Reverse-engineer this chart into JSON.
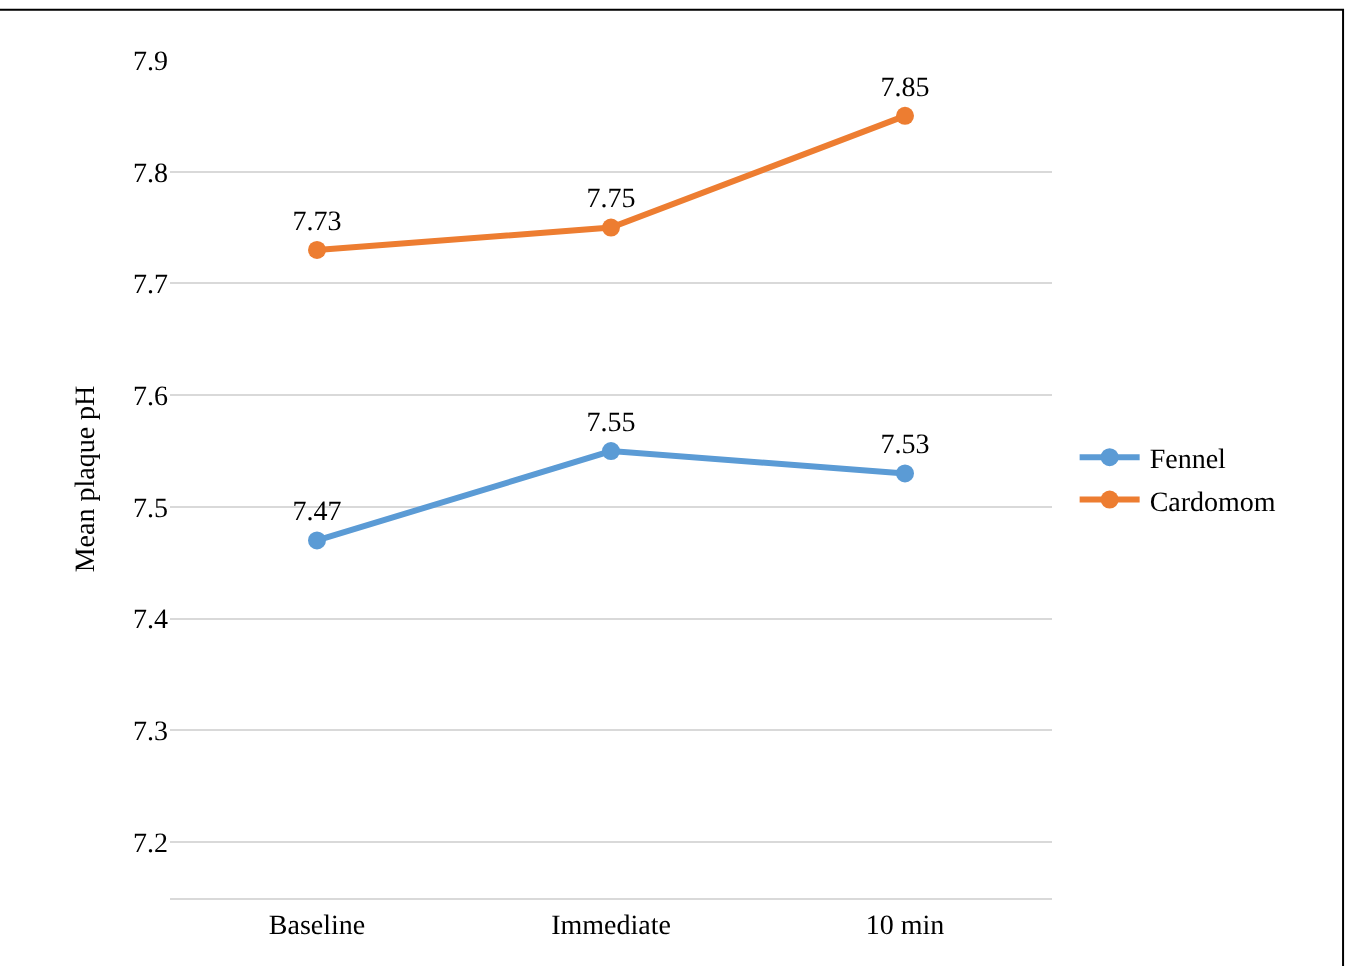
{
  "chart_data": {
    "type": "line",
    "ylabel": "Mean plaque pH",
    "categories": [
      "Baseline",
      "Immediate",
      "10 min"
    ],
    "series": [
      {
        "name": "Fennel",
        "color": "#5b9bd5",
        "values": [
          7.47,
          7.55,
          7.53
        ]
      },
      {
        "name": "Cardomom",
        "color": "#ed7d31",
        "values": [
          7.73,
          7.75,
          7.85
        ]
      }
    ],
    "ylim": [
      7.15,
      7.9
    ],
    "yticks": [
      7.2,
      7.3,
      7.4,
      7.5,
      7.6,
      7.7,
      7.8,
      7.9
    ],
    "grid": "y",
    "legend": "right",
    "marker": "circle",
    "line_style": "solid",
    "data_labels": true
  }
}
